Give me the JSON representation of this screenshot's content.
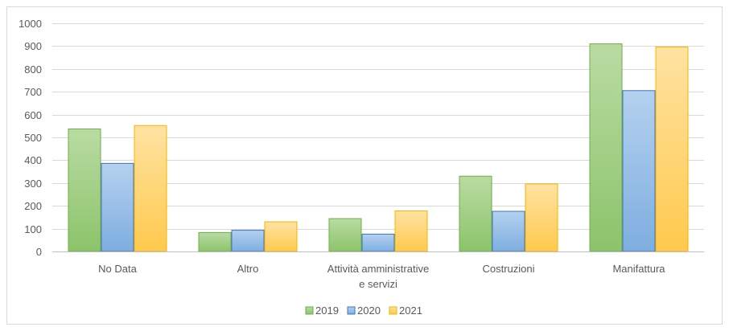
{
  "chart_data": {
    "type": "bar",
    "title": "",
    "xlabel": "",
    "ylabel": "",
    "categories": [
      [
        "No Data"
      ],
      [
        "Altro"
      ],
      [
        "Attività amministrative",
        "e servizi"
      ],
      [
        "Costruzioni"
      ],
      [
        "Manifattura"
      ]
    ],
    "series": [
      {
        "name": "2019",
        "color": "#a9d18e",
        "stroke": "#70ad47",
        "values": [
          537,
          83,
          144,
          330,
          910
        ]
      },
      {
        "name": "2020",
        "color": "#9dc3e6",
        "stroke": "#4472c4",
        "values": [
          386,
          93,
          76,
          176,
          705
        ]
      },
      {
        "name": "2021",
        "color": "#ffd966",
        "stroke": "#f4b400",
        "values": [
          552,
          130,
          178,
          296,
          896
        ]
      }
    ],
    "ylim": [
      0,
      1000
    ],
    "yticks": [
      0,
      100,
      200,
      300,
      400,
      500,
      600,
      700,
      800,
      900,
      1000
    ],
    "grid": true,
    "legend_position": "bottom"
  }
}
